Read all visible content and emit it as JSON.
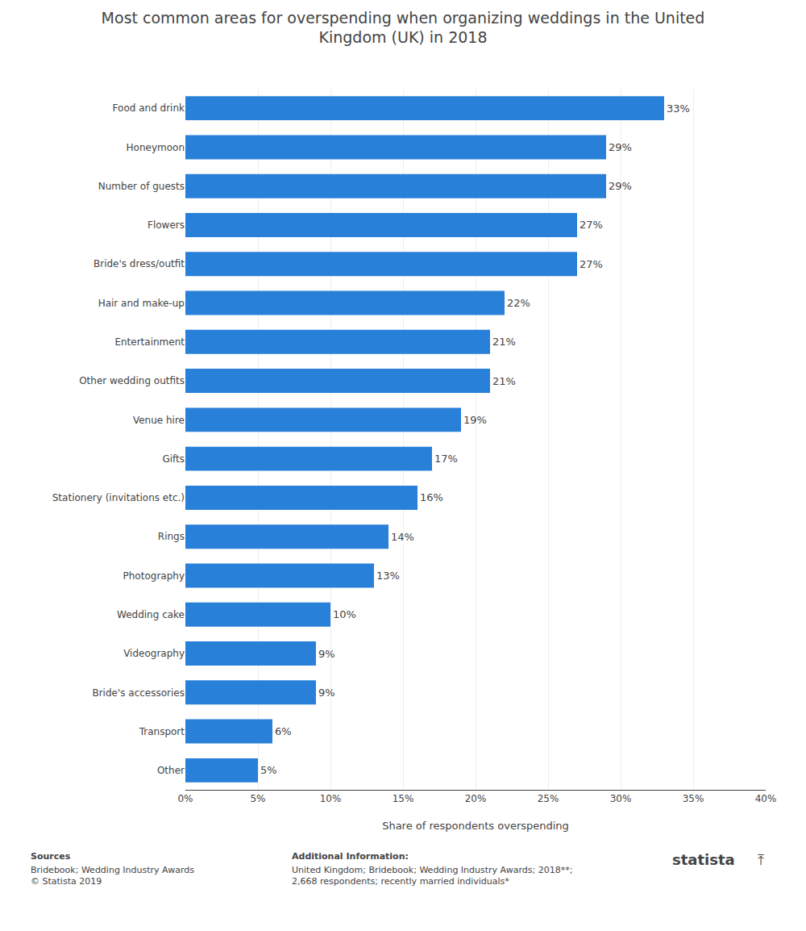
{
  "chart_data": {
    "type": "bar",
    "orientation": "horizontal",
    "title": "Most common areas for overspending when organizing weddings in the United\nKingdom (UK) in 2018",
    "categories": [
      "Food and drink",
      "Honeymoon",
      "Number of guests",
      "Flowers",
      "Bride's dress/outfit",
      "Hair and make-up",
      "Entertainment",
      "Other wedding outfits",
      "Venue hire",
      "Gifts",
      "Stationery (invitations etc.)",
      "Rings",
      "Photography",
      "Wedding cake",
      "Videography",
      "Bride's accessories",
      "Transport",
      "Other"
    ],
    "values": [
      33,
      29,
      29,
      27,
      27,
      22,
      21,
      21,
      19,
      17,
      16,
      14,
      13,
      10,
      9,
      9,
      6,
      5
    ],
    "value_labels": [
      "33%",
      "29%",
      "29%",
      "27%",
      "27%",
      "22%",
      "21%",
      "21%",
      "19%",
      "17%",
      "16%",
      "14%",
      "13%",
      "10%",
      "9%",
      "9%",
      "6%",
      "5%"
    ],
    "data_labels": true,
    "color": "#2980d9",
    "xlabel": "Share of respondents overspending",
    "xlim": [
      0,
      40
    ],
    "xticks": [
      {
        "value": 0,
        "label": "0%"
      },
      {
        "value": 5,
        "label": "5%"
      },
      {
        "value": 10,
        "label": "10%"
      },
      {
        "value": 15,
        "label": "15%"
      },
      {
        "value": 20,
        "label": "20%"
      },
      {
        "value": 25,
        "label": "25%"
      },
      {
        "value": 30,
        "label": "30%"
      },
      {
        "value": 35,
        "label": "35%"
      },
      {
        "value": 40,
        "label": "40%"
      }
    ],
    "grid": true,
    "annotations": [
      "Sources",
      "Bridebook; Wedding Industry Awards\n© Statista 2019",
      "Additional Information:",
      "United Kingdom; Bridebook; Wedding Industry Awards; 2018**;\n2,668 respondents; recently married individuals*",
      "statista",
      "⤒"
    ]
  }
}
